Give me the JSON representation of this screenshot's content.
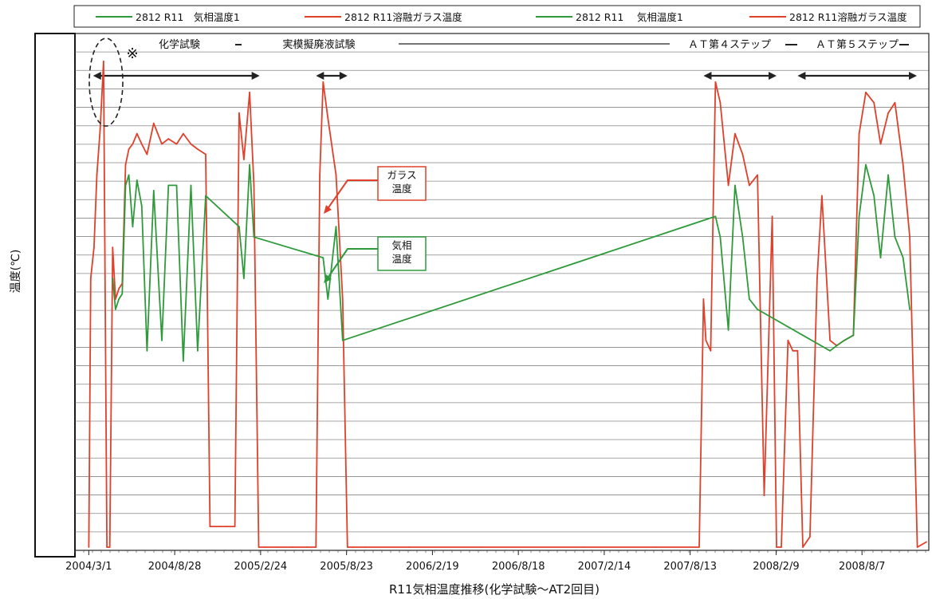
{
  "chart_data": {
    "type": "line",
    "title": "",
    "xlabel": "R11気相温度推移(化学試験～AT2回目)",
    "ylabel": "温度(℃)",
    "x_ticks": [
      "2004/3/1",
      "2004/8/28",
      "2005/2/24",
      "2005/8/23",
      "2006/2/19",
      "2006/8/18",
      "2007/2/14",
      "2007/8/13",
      "2008/2/9",
      "2008/8/7"
    ],
    "xlim": [
      "2004/2/1",
      "2008/12/25"
    ],
    "ylim": [
      0,
      100
    ],
    "y_axis_values_redacted": true,
    "grid": true,
    "legend": [
      {
        "name": "2812 R11　気相温度1",
        "color": "#2e9a3a"
      },
      {
        "name": "2812 R11溶融ガラス温度",
        "color": "#e0402a"
      },
      {
        "name": "2812 R11　 気相温度1",
        "color": "#2e9a3a"
      },
      {
        "name": "2812 R11溶融ガラス温度",
        "color": "#e0402a"
      }
    ],
    "legend_position": "top",
    "campaigns": [
      {
        "label": "化学試験",
        "start": "2004/3/10",
        "end": "2005/2/22"
      },
      {
        "label": "実模擬廃液試験",
        "start": "2005/6/20",
        "end": "2005/8/25"
      },
      {
        "label": "ＡＴ第４ステップ",
        "start": "2007/9/10",
        "end": "2008/2/10"
      },
      {
        "label": "ＡＴ第５ステップ",
        "start": "2008/3/25",
        "end": "2008/11/30"
      }
    ],
    "annotations": [
      {
        "text": "ガラス\n温度",
        "series": "2812 R11溶融ガラス温度",
        "color": "#e0402a"
      },
      {
        "text": "気相\n温度",
        "series": "2812 R11　気相温度1",
        "color": "#2e9a3a"
      },
      {
        "text": "※",
        "note": "dashed ellipse around early spike"
      }
    ],
    "series": [
      {
        "name": "2812 R11溶融ガラス温度",
        "color": "#e0402a",
        "x": [
          "2004/3/1",
          "2004/3/5",
          "2004/3/12",
          "2004/3/18",
          "2004/3/25",
          "2004/4/1",
          "2004/4/8",
          "2004/4/14",
          "2004/4/20",
          "2004/4/26",
          "2004/5/3",
          "2004/5/10",
          "2004/5/17",
          "2004/5/24",
          "2004/6/1",
          "2004/6/10",
          "2004/6/20",
          "2004/7/1",
          "2004/7/15",
          "2004/8/1",
          "2004/8/15",
          "2004/9/1",
          "2004/9/15",
          "2004/10/1",
          "2004/10/15",
          "2004/11/1",
          "2004/11/10",
          "2004/11/20",
          "2004/12/1",
          "2004/12/15",
          "2005/1/1",
          "2005/1/10",
          "2005/1/20",
          "2005/2/1",
          "2005/2/10",
          "2005/2/20",
          "2005/3/5",
          "2005/4/1",
          "2005/5/1",
          "2005/6/1",
          "2005/6/20",
          "2005/6/28",
          "2005/7/5",
          "2005/7/15",
          "2005/8/1",
          "2005/8/15",
          "2005/8/25",
          "2005/9/5",
          "2005/10/1",
          "2006/1/1",
          "2006/6/1",
          "2007/1/1",
          "2007/6/1",
          "2007/9/1",
          "2007/9/10",
          "2007/9/15",
          "2007/9/25",
          "2007/10/5",
          "2007/10/15",
          "2007/11/1",
          "2007/11/15",
          "2007/12/1",
          "2007/12/15",
          "2008/1/1",
          "2008/1/15",
          "2008/2/1",
          "2008/2/10",
          "2008/2/20",
          "2008/3/5",
          "2008/3/15",
          "2008/3/25",
          "2008/4/5",
          "2008/4/20",
          "2008/5/5",
          "2008/5/15",
          "2008/6/1",
          "2008/6/15",
          "2008/7/1",
          "2008/7/20",
          "2008/8/1",
          "2008/8/15",
          "2008/9/1",
          "2008/9/15",
          "2008/10/1",
          "2008/10/15",
          "2008/11/1",
          "2008/11/15",
          "2008/12/1",
          "2008/12/20"
        ],
        "values": [
          0,
          52,
          58,
          72,
          81,
          94,
          0,
          0,
          58,
          48,
          50,
          51,
          74,
          77,
          78,
          80,
          78,
          76,
          82,
          78,
          79,
          78,
          80,
          78,
          77,
          76,
          4,
          4,
          4,
          4,
          4,
          84,
          75,
          88,
          70,
          0,
          0,
          0,
          0,
          0,
          0,
          72,
          90,
          83,
          72,
          48,
          0,
          0,
          0,
          0,
          0,
          0,
          0,
          0,
          48,
          40,
          38,
          90,
          86,
          70,
          80,
          76,
          70,
          72,
          10,
          64,
          0,
          0,
          40,
          38,
          38,
          0,
          2,
          52,
          68,
          40,
          39,
          40,
          41,
          80,
          88,
          86,
          78,
          84,
          86,
          74,
          60,
          0,
          1
        ]
      },
      {
        "name": "2812 R11　気相温度1",
        "color": "#2e9a3a",
        "x": [
          "2004/4/20",
          "2004/4/26",
          "2004/5/3",
          "2004/5/10",
          "2004/5/17",
          "2004/5/24",
          "2004/6/1",
          "2004/6/10",
          "2004/6/20",
          "2004/7/1",
          "2004/7/15",
          "2004/8/1",
          "2004/8/15",
          "2004/9/1",
          "2004/9/15",
          "2004/10/1",
          "2004/10/15",
          "2004/11/1",
          "2005/1/10",
          "2005/1/20",
          "2005/2/1",
          "2005/2/10",
          "2005/7/5",
          "2005/7/15",
          "2005/8/1",
          "2005/8/15",
          "2007/10/5",
          "2007/10/15",
          "2007/11/1",
          "2007/11/15",
          "2007/12/1",
          "2007/12/15",
          "2008/1/1",
          "2008/6/1",
          "2008/6/15",
          "2008/7/1",
          "2008/7/20",
          "2008/8/1",
          "2008/8/15",
          "2008/9/1",
          "2008/9/15",
          "2008/10/1",
          "2008/10/15",
          "2008/11/1",
          "2008/11/15"
        ],
        "values": [
          52,
          46,
          48,
          49,
          70,
          72,
          62,
          71,
          66,
          38,
          69,
          40,
          70,
          70,
          36,
          70,
          38,
          68,
          62,
          52,
          74,
          60,
          56,
          48,
          62,
          40,
          64,
          60,
          42,
          70,
          60,
          48,
          46,
          38,
          39,
          40,
          41,
          64,
          74,
          68,
          56,
          72,
          60,
          56,
          46
        ]
      }
    ]
  }
}
